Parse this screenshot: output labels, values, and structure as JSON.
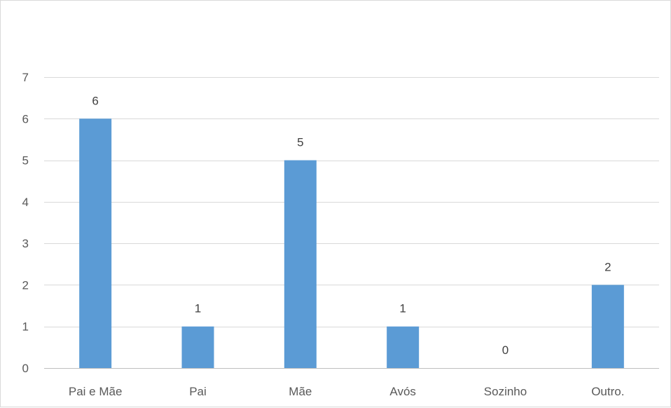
{
  "chart_data": {
    "type": "bar",
    "title": "",
    "xlabel": "",
    "ylabel": "",
    "categories": [
      "Pai e Mãe",
      "Pai",
      "Mãe",
      "Avós",
      "Sozinho",
      "Outro."
    ],
    "values": [
      6,
      1,
      5,
      1,
      0,
      2
    ],
    "data_labels": [
      "6",
      "1",
      "5",
      "1",
      "0",
      "2"
    ],
    "ylim": [
      0,
      7
    ],
    "yticks": [
      "0",
      "1",
      "2",
      "3",
      "4",
      "5",
      "6",
      "7"
    ],
    "grid": "horizontal",
    "legend": "none",
    "colors": {
      "bar": "#5b9bd5",
      "grid": "#d9d9d9",
      "axis": "#bfbfbf"
    }
  }
}
